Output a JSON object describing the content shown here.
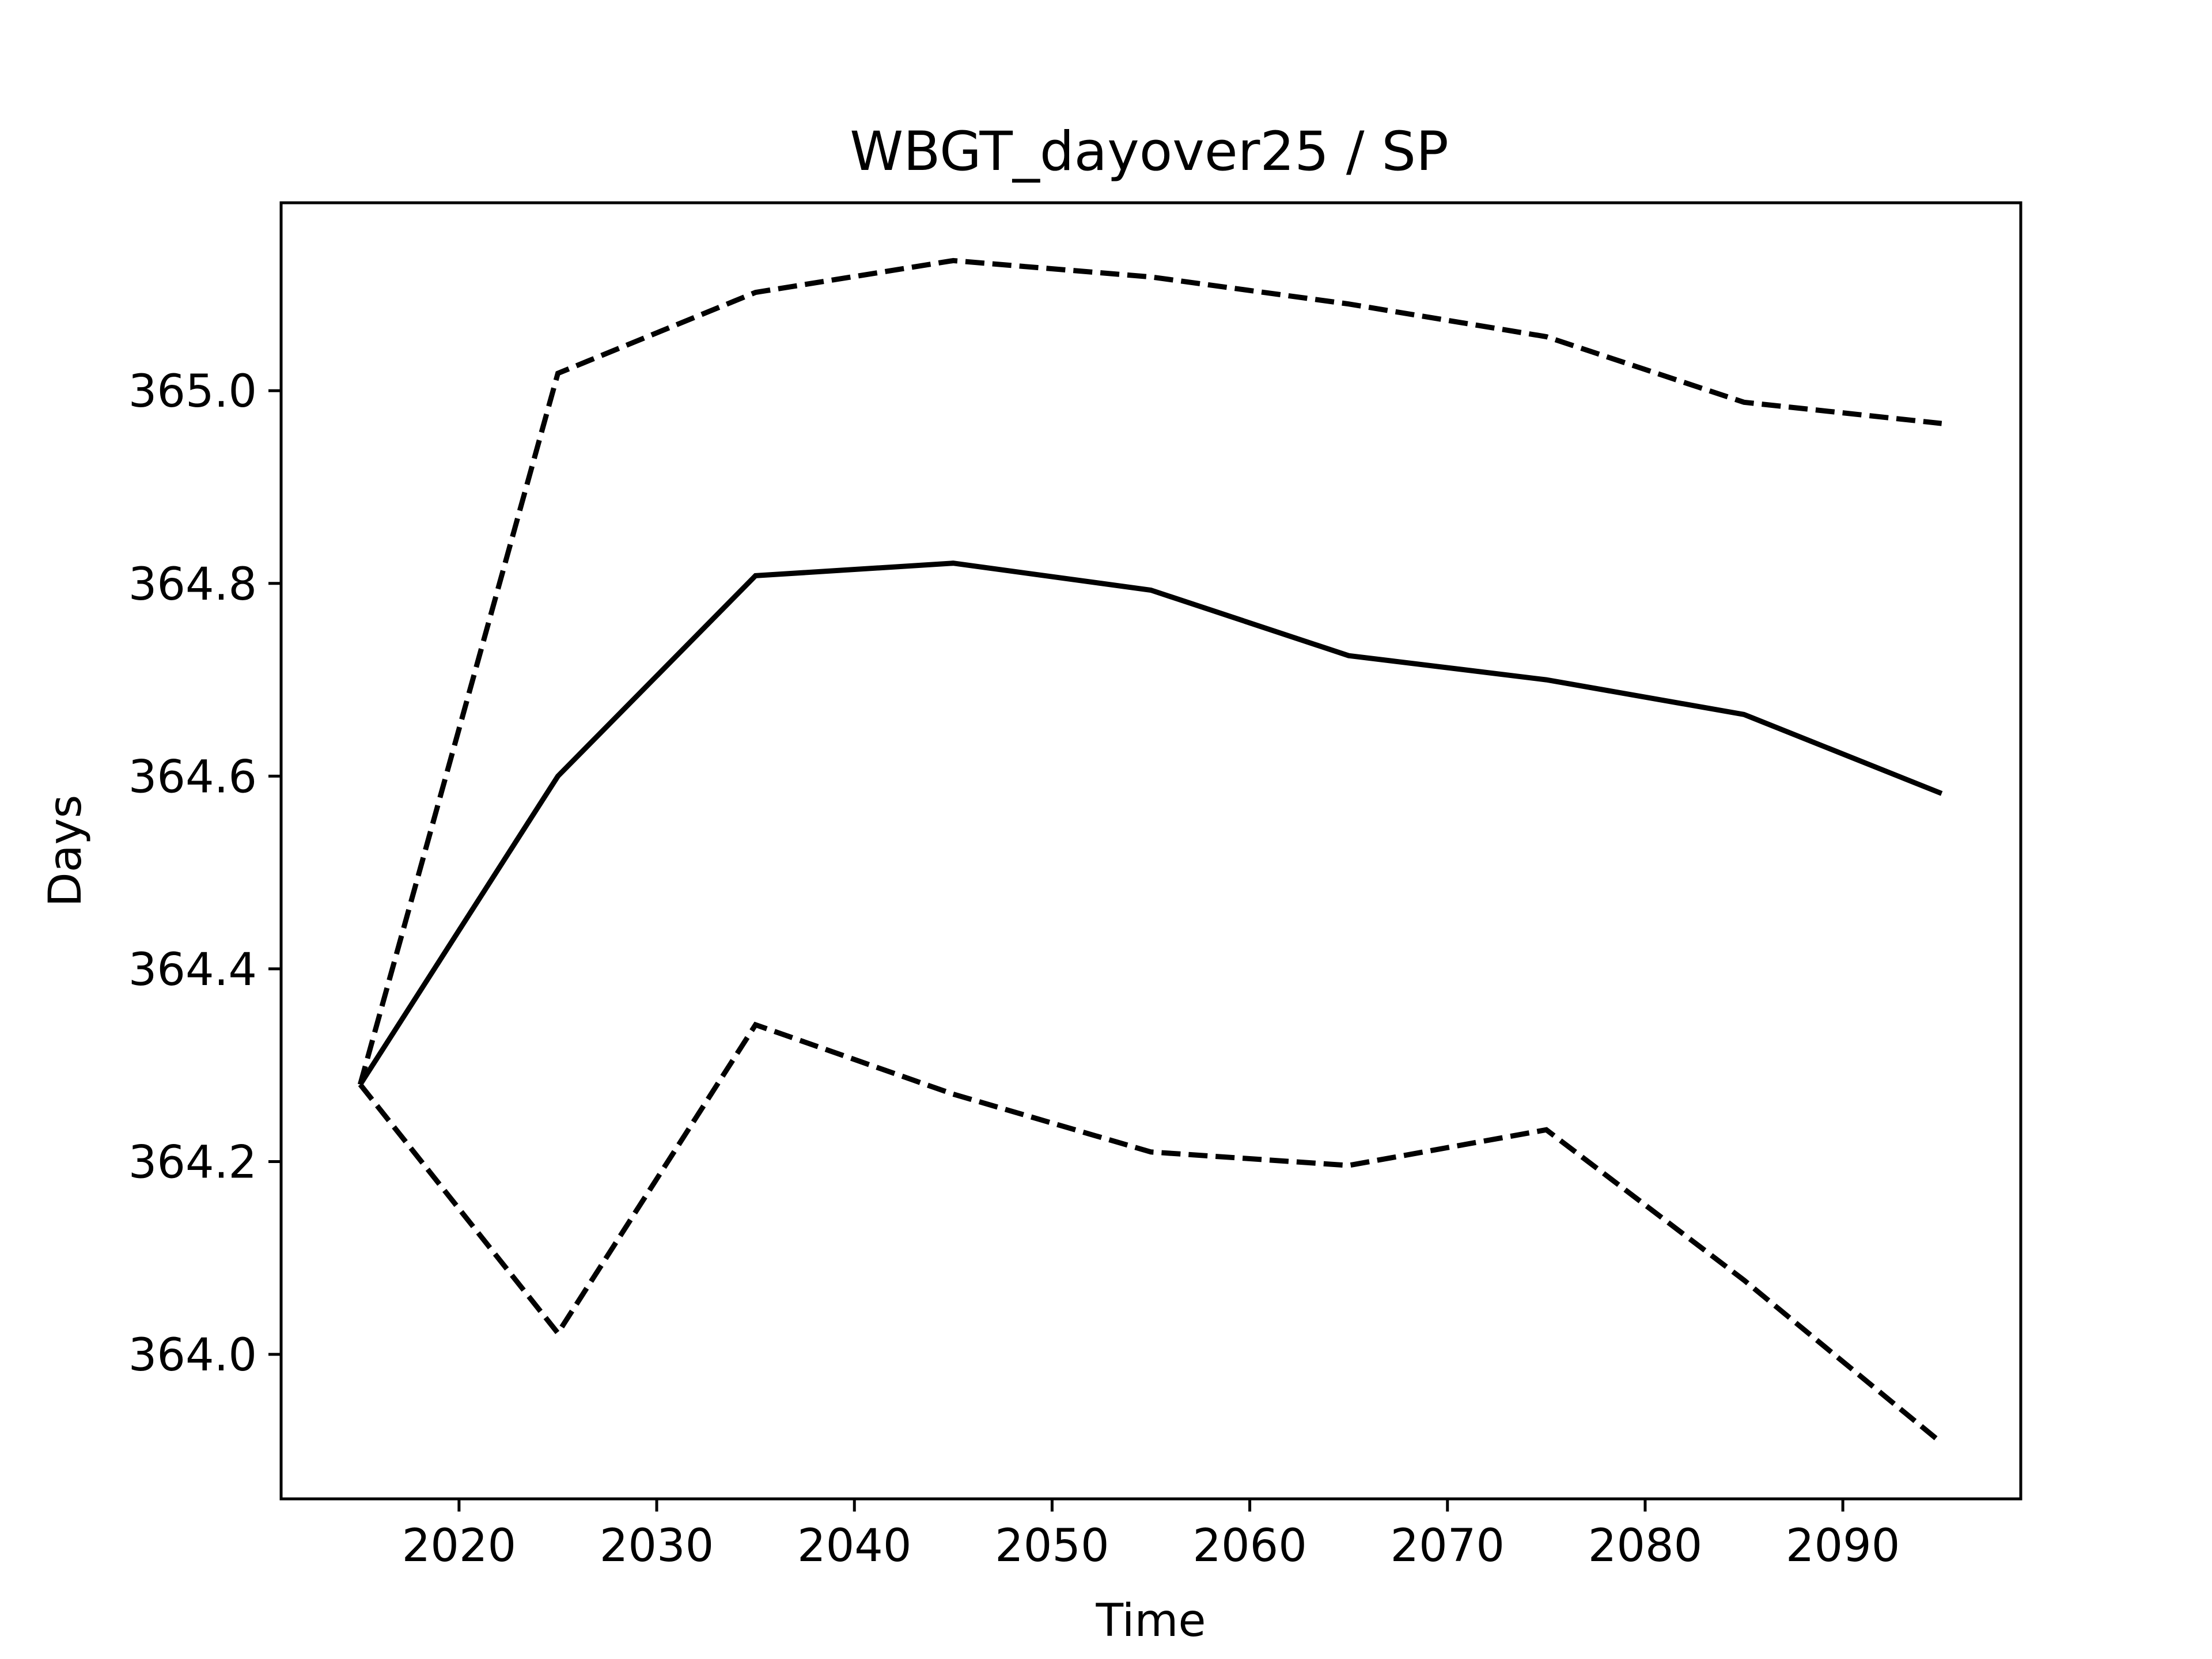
{
  "chart_data": {
    "type": "line",
    "title": "WBGT_dayover25 / SP",
    "xlabel": "Time",
    "ylabel": "Days",
    "x": [
      2015,
      2025,
      2035,
      2045,
      2055,
      2065,
      2075,
      2085,
      2095
    ],
    "xlim": [
      2011,
      2099
    ],
    "ylim": [
      363.85,
      365.195
    ],
    "xticks": [
      2020,
      2030,
      2040,
      2050,
      2060,
      2070,
      2080,
      2090
    ],
    "yticks": [
      364.0,
      364.2,
      364.4,
      364.6,
      364.8,
      365.0
    ],
    "ytick_labels": [
      "364.0",
      "364.2",
      "364.4",
      "364.6",
      "364.8",
      "365.0"
    ],
    "grid": false,
    "line_color": "#000000",
    "series": [
      {
        "style": "dashed",
        "values": [
          364.28,
          365.018,
          365.102,
          365.135,
          365.118,
          365.09,
          365.056,
          364.988,
          364.966
        ]
      },
      {
        "style": "solid",
        "values": [
          364.28,
          364.6,
          364.808,
          364.821,
          364.793,
          364.725,
          364.7,
          364.664,
          364.582
        ]
      },
      {
        "style": "dashed",
        "values": [
          364.28,
          364.022,
          364.342,
          364.27,
          364.21,
          364.196,
          364.233,
          364.077,
          363.908
        ]
      }
    ]
  }
}
